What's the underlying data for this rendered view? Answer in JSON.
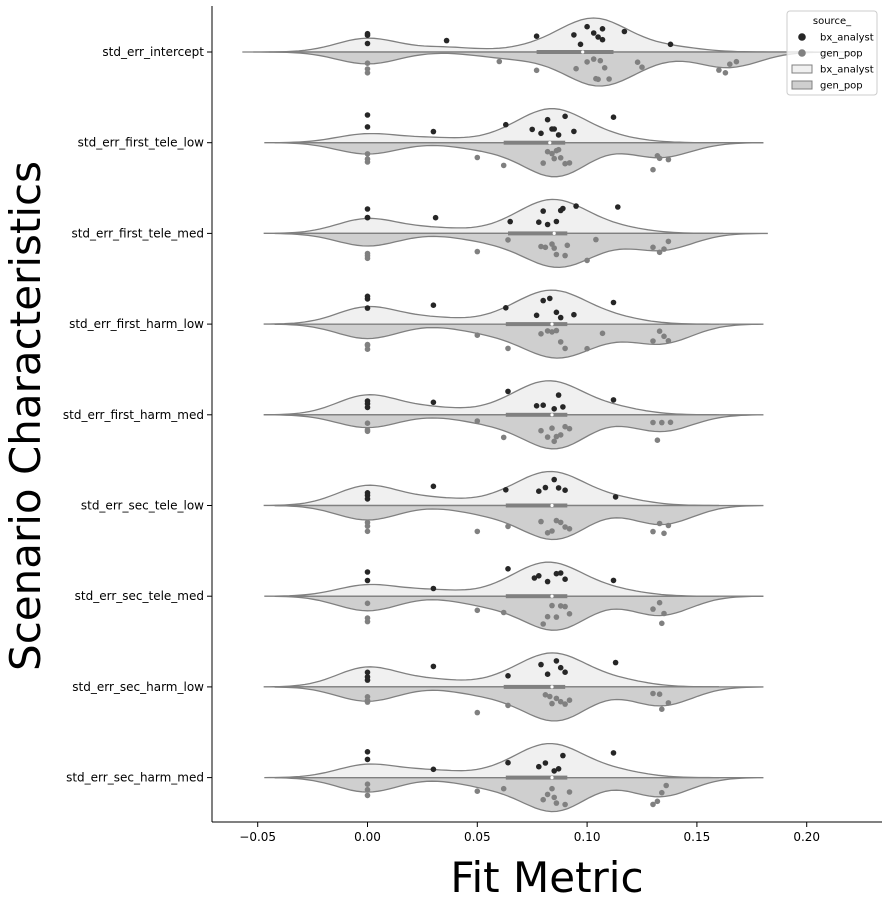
{
  "chart_data": {
    "type": "violin",
    "xlabel": "Fit Metric",
    "ylabel": "Scenario Characteristics",
    "xlim": [
      -0.07,
      0.233
    ],
    "x_ticks": [
      -0.05,
      0.0,
      0.05,
      0.1,
      0.15,
      0.2
    ],
    "x_tick_labels": [
      "−0.05",
      "0.00",
      "0.05",
      "0.10",
      "0.15",
      "0.20"
    ],
    "grid": false,
    "split": true,
    "categories": [
      "std_err_intercept",
      "std_err_first_tele_low",
      "std_err_first_tele_med",
      "std_err_first_harm_low",
      "std_err_first_harm_med",
      "std_err_sec_tele_low",
      "std_err_sec_tele_med",
      "std_err_sec_harm_low",
      "std_err_sec_harm_med"
    ],
    "legend": {
      "title": "source_",
      "placement": "top-right",
      "entries": [
        {
          "label": "bx_analyst",
          "kind": "point",
          "color": "#262626"
        },
        {
          "label": "gen_pop",
          "kind": "point",
          "color": "#808080"
        },
        {
          "label": "bx_analyst",
          "kind": "patch",
          "color": "#f0f0f0"
        },
        {
          "label": "gen_pop",
          "kind": "patch",
          "color": "#cfcfcf"
        }
      ]
    },
    "series": [
      {
        "name": "bx_analyst",
        "violin_color": "#f0f0f0",
        "point_color": "#262626",
        "extent": [
          [
            -0.057,
            0.2
          ],
          [
            -0.047,
            0.158
          ],
          [
            -0.047,
            0.16
          ],
          [
            -0.047,
            0.159
          ],
          [
            -0.047,
            0.159
          ],
          [
            -0.047,
            0.16
          ],
          [
            -0.047,
            0.159
          ],
          [
            -0.047,
            0.16
          ],
          [
            -0.047,
            0.16
          ]
        ],
        "quartiles": [
          [
            0.077,
            0.098,
            0.112
          ],
          [
            0.062,
            0.083,
            0.09
          ],
          [
            0.064,
            0.085,
            0.091
          ],
          [
            0.063,
            0.084,
            0.091
          ],
          [
            0.063,
            0.084,
            0.091
          ],
          [
            0.063,
            0.084,
            0.091
          ],
          [
            0.063,
            0.084,
            0.091
          ],
          [
            0.062,
            0.084,
            0.09
          ],
          [
            0.063,
            0.084,
            0.091
          ]
        ],
        "points": [
          [
            0.0,
            0.0,
            0.0,
            0.036,
            0.077,
            0.094,
            0.097,
            0.1,
            0.103,
            0.105,
            0.107,
            0.107,
            0.117,
            0.138
          ],
          [
            0.0,
            0.0,
            0.03,
            0.063,
            0.075,
            0.079,
            0.082,
            0.084,
            0.085,
            0.087,
            0.09,
            0.094,
            0.112
          ],
          [
            0.0,
            0.0,
            0.0,
            0.031,
            0.065,
            0.078,
            0.08,
            0.082,
            0.086,
            0.088,
            0.089,
            0.095,
            0.114
          ],
          [
            0.0,
            0.0,
            0.0,
            0.03,
            0.063,
            0.077,
            0.08,
            0.083,
            0.086,
            0.088,
            0.094,
            0.112
          ],
          [
            0.0,
            0.0,
            0.0,
            0.03,
            0.064,
            0.077,
            0.08,
            0.085,
            0.087,
            0.089,
            0.112
          ],
          [
            0.0,
            0.0,
            0.0,
            0.03,
            0.063,
            0.078,
            0.081,
            0.085,
            0.087,
            0.09,
            0.113
          ],
          [
            0.0,
            0.0,
            0.03,
            0.064,
            0.076,
            0.078,
            0.082,
            0.086,
            0.088,
            0.09,
            0.112
          ],
          [
            0.0,
            0.0,
            0.0,
            0.03,
            0.064,
            0.079,
            0.082,
            0.086,
            0.088,
            0.09,
            0.113
          ],
          [
            0.0,
            0.0,
            0.03,
            0.064,
            0.078,
            0.081,
            0.085,
            0.087,
            0.089,
            0.112
          ]
        ]
      },
      {
        "name": "gen_pop",
        "violin_color": "#cfcfcf",
        "point_color": "#808080",
        "extent": [
          [
            -0.052,
            0.223
          ],
          [
            -0.042,
            0.18
          ],
          [
            -0.042,
            0.182
          ],
          [
            -0.042,
            0.18
          ],
          [
            -0.042,
            0.18
          ],
          [
            -0.042,
            0.18
          ],
          [
            -0.042,
            0.18
          ],
          [
            -0.042,
            0.18
          ],
          [
            -0.042,
            0.18
          ]
        ],
        "quartiles": [
          [
            0.077,
            0.098,
            0.112
          ],
          [
            0.062,
            0.083,
            0.09
          ],
          [
            0.064,
            0.085,
            0.091
          ],
          [
            0.063,
            0.084,
            0.091
          ],
          [
            0.063,
            0.084,
            0.091
          ],
          [
            0.063,
            0.084,
            0.091
          ],
          [
            0.063,
            0.084,
            0.091
          ],
          [
            0.062,
            0.084,
            0.09
          ],
          [
            0.063,
            0.084,
            0.091
          ]
        ],
        "points": [
          [
            0.0,
            0.0,
            0.0,
            0.06,
            0.077,
            0.095,
            0.1,
            0.103,
            0.104,
            0.105,
            0.106,
            0.108,
            0.11,
            0.123,
            0.125,
            0.16,
            0.163,
            0.165,
            0.168
          ],
          [
            0.0,
            0.0,
            0.0,
            0.05,
            0.062,
            0.08,
            0.082,
            0.084,
            0.085,
            0.086,
            0.087,
            0.088,
            0.09,
            0.092,
            0.13,
            0.132,
            0.133,
            0.137
          ],
          [
            0.0,
            0.0,
            0.0,
            0.05,
            0.064,
            0.079,
            0.081,
            0.084,
            0.085,
            0.086,
            0.09,
            0.091,
            0.1,
            0.104,
            0.13,
            0.133,
            0.135,
            0.137
          ],
          [
            0.0,
            0.0,
            0.0,
            0.05,
            0.064,
            0.079,
            0.082,
            0.084,
            0.086,
            0.088,
            0.09,
            0.1,
            0.107,
            0.13,
            0.133,
            0.135,
            0.137
          ],
          [
            0.0,
            0.0,
            0.0,
            0.05,
            0.062,
            0.079,
            0.082,
            0.084,
            0.085,
            0.086,
            0.088,
            0.09,
            0.092,
            0.13,
            0.132,
            0.134,
            0.138
          ],
          [
            0.0,
            0.0,
            0.0,
            0.05,
            0.064,
            0.079,
            0.082,
            0.084,
            0.086,
            0.088,
            0.09,
            0.092,
            0.13,
            0.133,
            0.135,
            0.137
          ],
          [
            0.0,
            0.0,
            0.0,
            0.05,
            0.062,
            0.08,
            0.082,
            0.084,
            0.086,
            0.088,
            0.09,
            0.092,
            0.13,
            0.133,
            0.134,
            0.135
          ],
          [
            0.0,
            0.0,
            0.0,
            0.05,
            0.064,
            0.081,
            0.083,
            0.084,
            0.086,
            0.088,
            0.09,
            0.092,
            0.13,
            0.133,
            0.134,
            0.137
          ],
          [
            0.0,
            0.0,
            0.0,
            0.05,
            0.062,
            0.08,
            0.082,
            0.084,
            0.085,
            0.086,
            0.09,
            0.092,
            0.13,
            0.132,
            0.134,
            0.136
          ]
        ]
      }
    ]
  }
}
